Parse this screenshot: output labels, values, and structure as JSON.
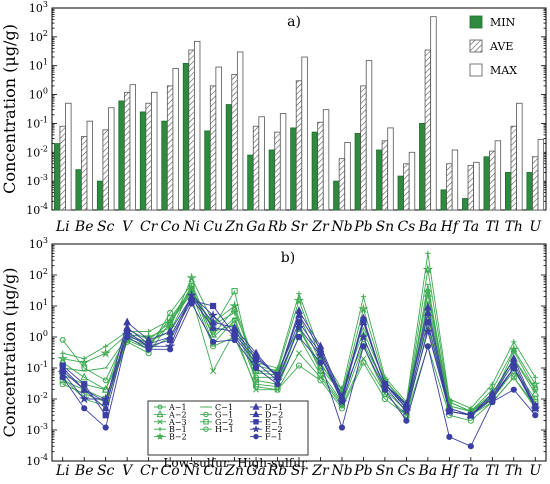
{
  "chart_data": [
    {
      "type": "bar",
      "panel_label": "a)",
      "ylabel": "Concentration (μg/g)",
      "yscale": "log",
      "ylim": [
        0.0001,
        1000
      ],
      "ytick_labels": [
        "10-4",
        "10-3",
        "10-2",
        "10-1",
        "100",
        "101",
        "102",
        "103"
      ],
      "categories": [
        "Li",
        "Be",
        "Sc",
        "V",
        "Cr",
        "Co",
        "Ni",
        "Cu",
        "Zn",
        "Ga",
        "Rb",
        "Sr",
        "Zr",
        "Nb",
        "Pb",
        "Sn",
        "Cs",
        "Ba",
        "Hf",
        "Ta",
        "Tl",
        "Th",
        "U"
      ],
      "legend_position": "top-right",
      "series": [
        {
          "name": "MIN",
          "color": "#2e8b3e",
          "pattern": "solid",
          "values": [
            0.02,
            0.0025,
            0.001,
            0.6,
            0.25,
            0.12,
            12,
            0.055,
            0.45,
            0.008,
            0.012,
            0.07,
            0.05,
            0.001,
            0.045,
            0.012,
            0.0015,
            0.1,
            0.0005,
            0.00025,
            0.007,
            0.002,
            0.002
          ]
        },
        {
          "name": "AVE",
          "color": "#ffffff",
          "pattern": "hatch",
          "values": [
            0.08,
            0.035,
            0.06,
            1.2,
            0.5,
            2.0,
            35,
            2.0,
            5.0,
            0.08,
            0.05,
            3.0,
            0.11,
            0.006,
            2.0,
            0.025,
            0.004,
            35,
            0.004,
            0.0035,
            0.011,
            0.08,
            0.007
          ]
        },
        {
          "name": "MAX",
          "color": "#ffffff",
          "pattern": "plain",
          "values": [
            0.5,
            0.12,
            0.35,
            2.2,
            1.2,
            8,
            70,
            9,
            30,
            0.17,
            0.22,
            20,
            0.3,
            0.022,
            15,
            0.07,
            0.01,
            500,
            0.012,
            0.0045,
            0.025,
            0.5,
            0.028
          ]
        }
      ]
    },
    {
      "type": "line",
      "panel_label": "b)",
      "ylabel": "Concentration (μg/g)",
      "yscale": "log",
      "ylim": [
        0.0001,
        1000
      ],
      "ytick_labels": [
        "10-4",
        "10-3",
        "10-2",
        "10-1",
        "100",
        "101",
        "102",
        "103"
      ],
      "categories": [
        "Li",
        "Be",
        "Sc",
        "V",
        "Cr",
        "Co",
        "Ni",
        "Cu",
        "Zn",
        "Ga",
        "Rb",
        "Sr",
        "Zr",
        "Nb",
        "Pb",
        "Sn",
        "Cs",
        "Ba",
        "Hf",
        "Ta",
        "Tl",
        "Th",
        "U"
      ],
      "legend_position": "bottom-left",
      "group_labels": [
        "Low-sulfur",
        "High-sulfur"
      ],
      "series": [
        {
          "name": "A−1",
          "group": "Low-sulfur",
          "color": "#3caa50",
          "marker": "hexagon",
          "values": [
            0.8,
            0.1,
            0.04,
            1.3,
            0.6,
            2.5,
            45,
            0.6,
            3.5,
            0.05,
            0.05,
            1.8,
            0.1,
            0.015,
            0.6,
            0.03,
            0.005,
            30,
            0.008,
            0.004,
            0.01,
            0.35,
            0.02
          ]
        },
        {
          "name": "A−2",
          "group": "Low-sulfur",
          "color": "#3caa50",
          "marker": "triangle",
          "values": [
            0.15,
            0.05,
            0.02,
            1.8,
            0.8,
            3,
            30,
            1.2,
            8,
            0.08,
            0.08,
            2,
            0.12,
            0.02,
            1.5,
            0.04,
            0.007,
            25,
            0.006,
            0.004,
            0.012,
            0.2,
            0.015
          ]
        },
        {
          "name": "A−3",
          "group": "Low-sulfur",
          "color": "#3caa50",
          "marker": "x",
          "values": [
            0.05,
            0.01,
            0.006,
            1,
            0.4,
            1,
            20,
            0.08,
            1.5,
            0.02,
            0.02,
            0.3,
            0.05,
            0.006,
            0.2,
            0.015,
            0.003,
            2,
            0.004,
            0.003,
            0.008,
            0.05,
            0.006
          ]
        },
        {
          "name": "B−1",
          "group": "Low-sulfur",
          "color": "#3caa50",
          "marker": "plus",
          "values": [
            0.3,
            0.2,
            0.5,
            1.5,
            1.5,
            3.5,
            30,
            2.5,
            6,
            0.15,
            0.1,
            25,
            0.3,
            0.02,
            20,
            0.05,
            0.008,
            500,
            0.01,
            0.005,
            0.03,
            0.7,
            0.05
          ]
        },
        {
          "name": "B−2",
          "group": "Low-sulfur",
          "color": "#3caa50",
          "marker": "star",
          "values": [
            0.2,
            0.15,
            0.3,
            1.2,
            1,
            2,
            80,
            3,
            10,
            0.12,
            0.08,
            15,
            0.2,
            0.015,
            8,
            0.04,
            0.006,
            150,
            0.008,
            0.004,
            0.02,
            0.4,
            0.03
          ]
        },
        {
          "name": "C−1",
          "group": "Low-sulfur",
          "color": "#3caa50",
          "marker": "line",
          "values": [
            0.1,
            0.08,
            0.1,
            1,
            0.7,
            1.5,
            40,
            1,
            4,
            0.07,
            0.06,
            5,
            0.15,
            0.012,
            3,
            0.03,
            0.005,
            50,
            0.006,
            0.004,
            0.015,
            0.2,
            0.02
          ]
        },
        {
          "name": "G−1",
          "group": "Low-sulfur",
          "color": "#3caa50",
          "marker": "circle",
          "values": [
            0.06,
            0.03,
            0.02,
            0.8,
            0.4,
            6,
            50,
            1.5,
            2.5,
            0.04,
            0.03,
            2,
            0.08,
            0.008,
            1,
            0.02,
            0.004,
            15,
            0.005,
            0.003,
            0.01,
            0.1,
            0.01
          ]
        },
        {
          "name": "G−2",
          "group": "Low-sulfur",
          "color": "#3caa50",
          "marker": "square",
          "values": [
            0.04,
            0.02,
            0.01,
            0.9,
            0.5,
            4,
            35,
            2,
            30,
            0.03,
            0.025,
            1,
            0.06,
            0.007,
            0.5,
            0.015,
            0.003,
            5,
            0.004,
            0.003,
            0.01,
            0.08,
            0.008
          ]
        },
        {
          "name": "H−1",
          "group": "Low-sulfur",
          "color": "#3caa50",
          "marker": "circle",
          "values": [
            0.03,
            0.015,
            0.008,
            0.7,
            0.3,
            3,
            25,
            0.5,
            1,
            0.025,
            0.02,
            0.12,
            0.04,
            0.005,
            0.15,
            0.01,
            0.003,
            0.5,
            0.003,
            0.002,
            0.008,
            0.05,
            0.005
          ]
        },
        {
          "name": "D−1",
          "group": "High-sulfur",
          "color": "#3b3fa3",
          "marker": "triangle",
          "values": [
            0.08,
            0.02,
            0.008,
            3,
            0.8,
            1.5,
            20,
            3,
            2,
            0.3,
            0.05,
            7,
            0.5,
            0.012,
            4,
            0.03,
            0.007,
            9,
            0.005,
            0.003,
            0.015,
            0.2,
            0.006
          ]
        },
        {
          "name": "D−2",
          "group": "High-sulfur",
          "color": "#3b3fa3",
          "marker": "triangle",
          "values": [
            0.1,
            0.02,
            0.005,
            2,
            0.6,
            1,
            18,
            2,
            1.5,
            0.25,
            0.05,
            5,
            0.4,
            0.01,
            3,
            0.03,
            0.006,
            6,
            0.004,
            0.003,
            0.012,
            0.15,
            0.005
          ]
        },
        {
          "name": "E−1",
          "group": "High-sulfur",
          "color": "#3b3fa3",
          "marker": "square",
          "values": [
            0.12,
            0.03,
            0.003,
            1.5,
            0.5,
            0.8,
            15,
            10,
            1.2,
            0.2,
            0.06,
            3,
            0.3,
            0.009,
            3.5,
            0.03,
            0.005,
            3,
            0.004,
            0.003,
            0.012,
            0.1,
            0.006
          ]
        },
        {
          "name": "E−2",
          "group": "High-sulfur",
          "color": "#3b3fa3",
          "marker": "star",
          "values": [
            0.07,
            0.01,
            0.01,
            1.2,
            0.5,
            0.5,
            22,
            5,
            1,
            0.15,
            0.04,
            2,
            0.25,
            0.008,
            1,
            0.025,
            0.004,
            1.5,
            0.004,
            0.003,
            0.01,
            0.1,
            0.005
          ]
        },
        {
          "name": "F−1",
          "group": "High-sulfur",
          "color": "#3b3fa3",
          "marker": "circle",
          "values": [
            0.05,
            0.005,
            0.0012,
            1,
            0.4,
            0.4,
            12,
            0.7,
            0.8,
            0.1,
            0.03,
            1,
            0.15,
            0.0012,
            0.5,
            0.02,
            0.002,
            0.5,
            0.0006,
            0.0003,
            0.008,
            0.02,
            0.003
          ]
        }
      ]
    }
  ]
}
